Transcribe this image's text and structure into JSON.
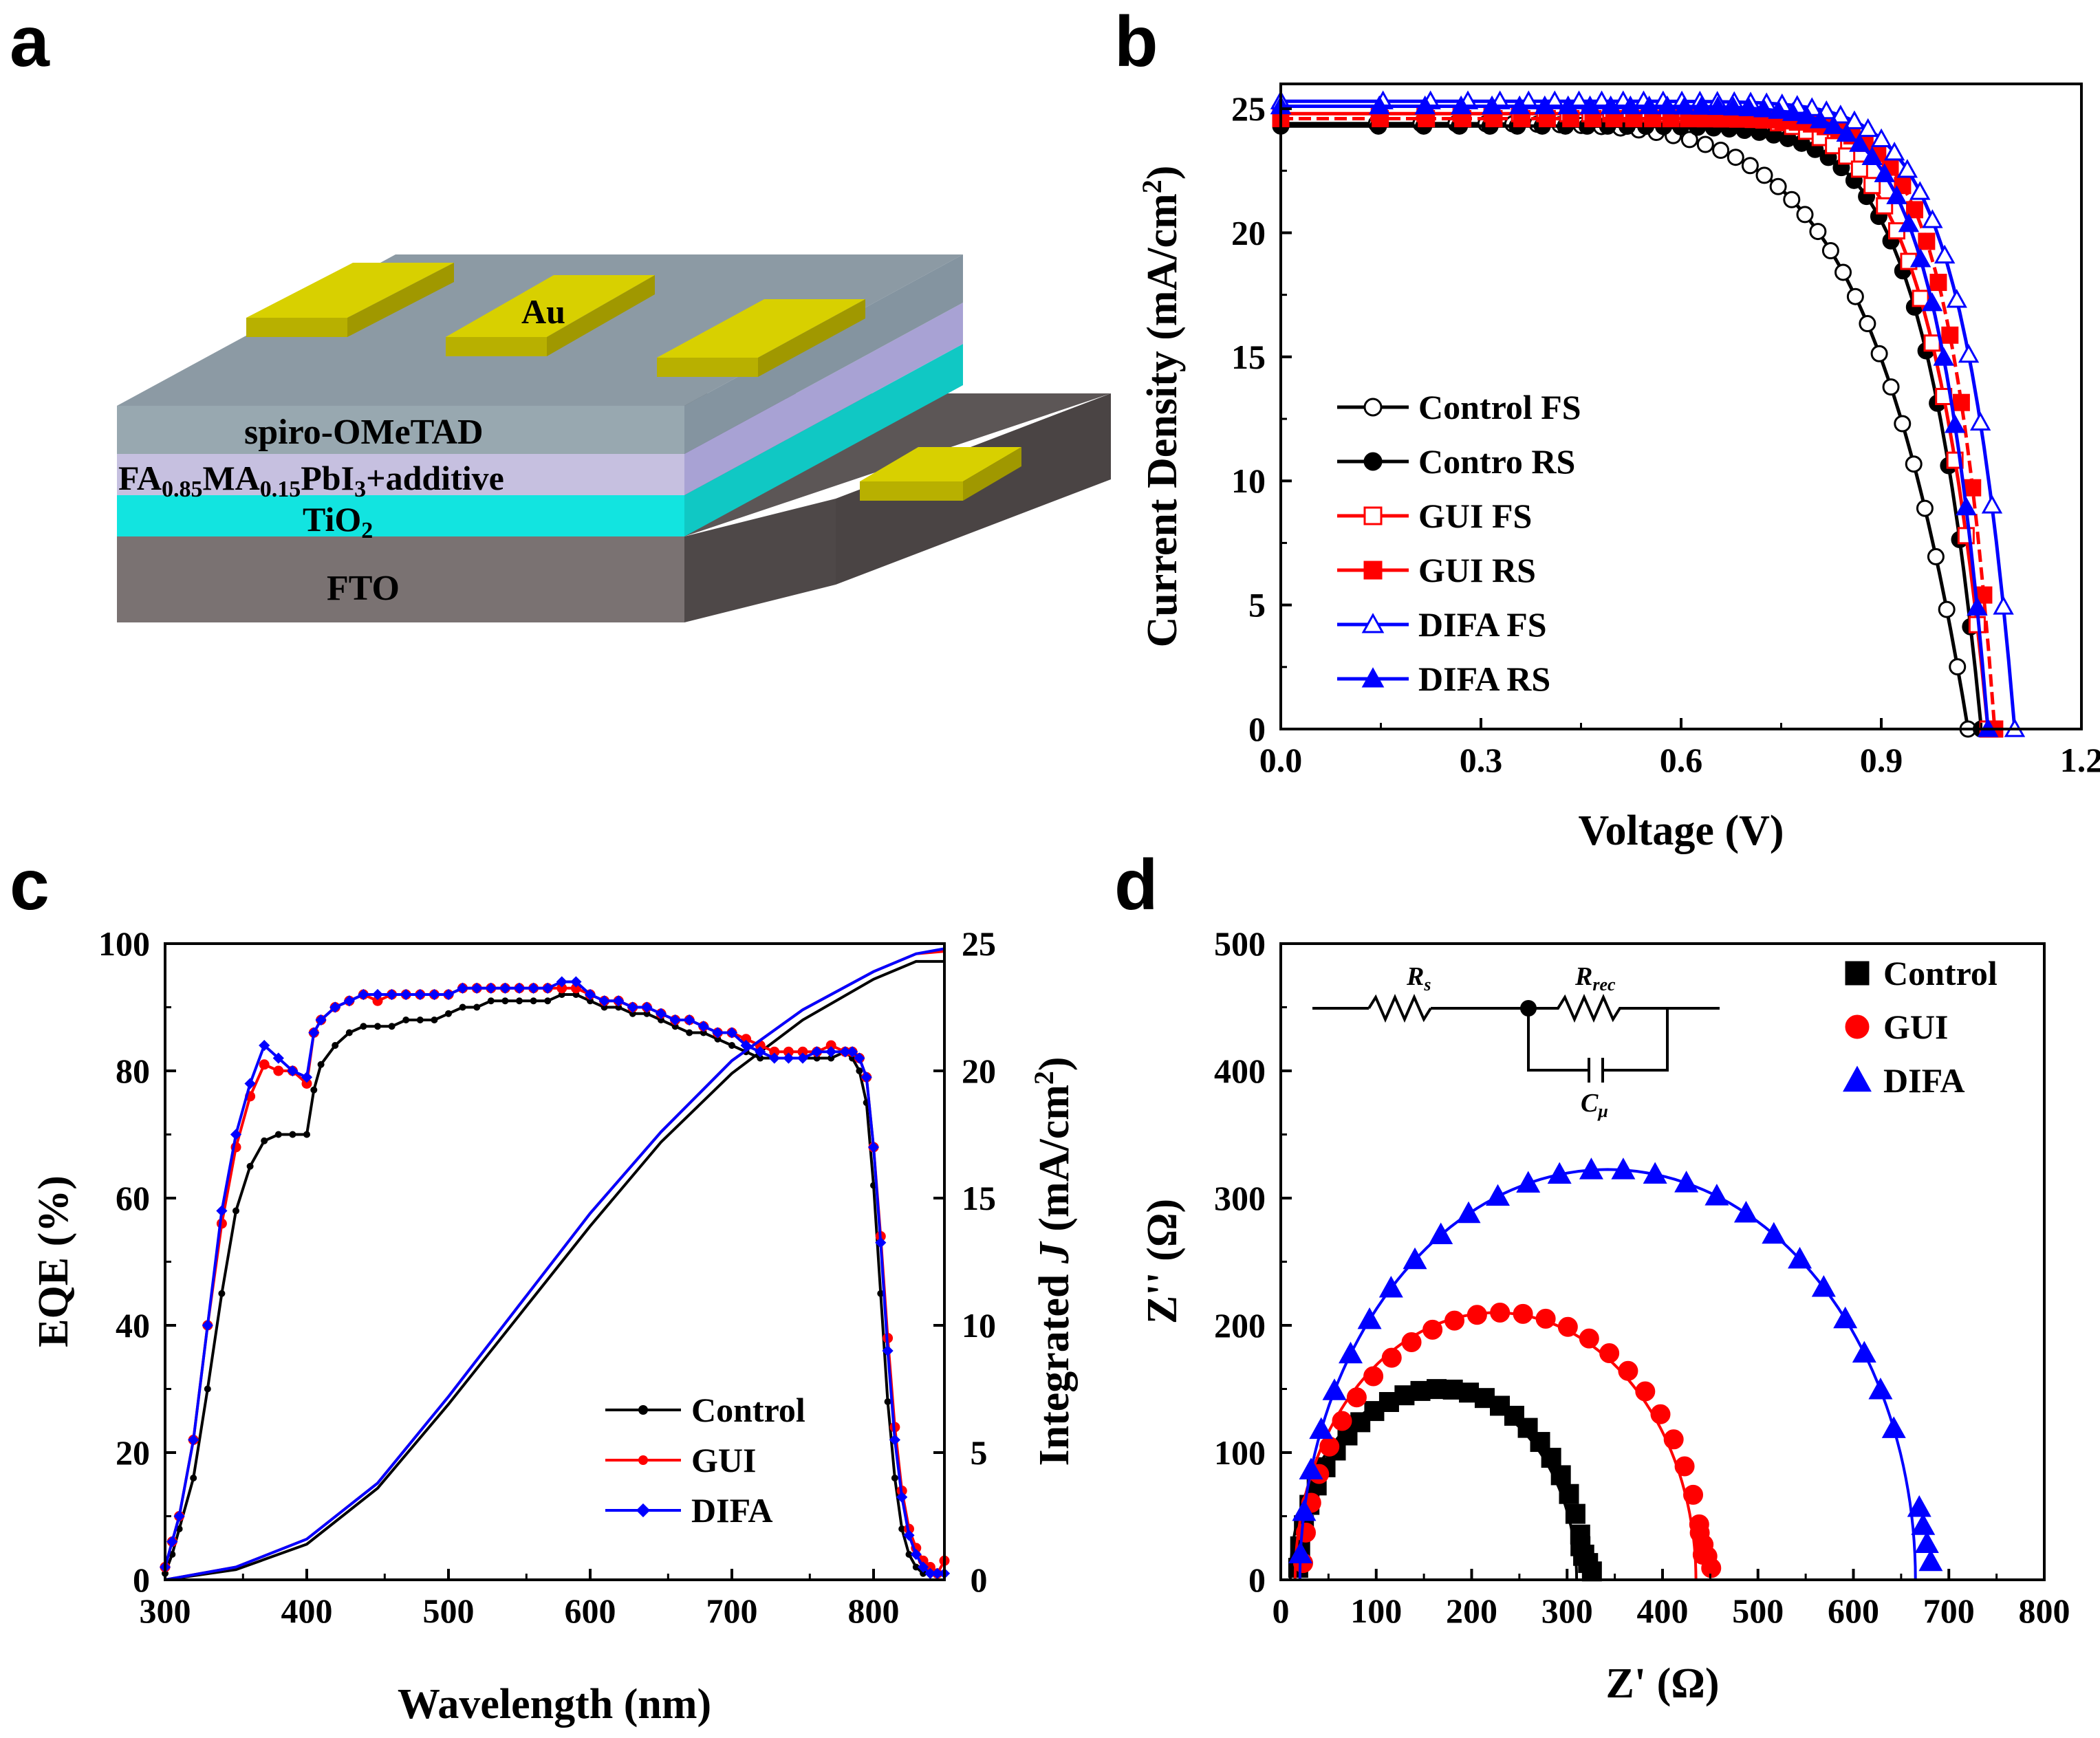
{
  "panels": {
    "a": "a",
    "b": "b",
    "c": "c",
    "d": "d"
  },
  "diagram": {
    "layers": [
      "spiro-OMeTAD",
      "FA",
      "0.85",
      "MA",
      "0.15",
      "PbI",
      "3",
      "+additive",
      "TiO",
      "2",
      "FTO"
    ],
    "electrode": "Au",
    "colors": {
      "au": "#d8d000",
      "spiro": "#98a8b0",
      "perovskite": "#c6c0e0",
      "tio2": "#12e4e0",
      "fto": "#7a7272"
    }
  },
  "chart_data": [
    {
      "id": "b",
      "type": "line",
      "title": "",
      "xlabel": "Voltage (V)",
      "ylabel": "Current Density (mA/cm²)",
      "ylabel_parts": [
        "Current Density (mA/cm",
        "2",
        ")"
      ],
      "xlim": [
        0,
        1.2
      ],
      "ylim": [
        0,
        26
      ],
      "xticks": [
        "0.0",
        "0.3",
        "0.6",
        "0.9",
        "1.2"
      ],
      "yticks": [
        "0",
        "5",
        "10",
        "15",
        "20",
        "25"
      ],
      "series": [
        {
          "name": "Control FS",
          "color": "#000000",
          "marker": "circle-open",
          "jsc": 24.4,
          "voc": 1.03,
          "sharp": 7
        },
        {
          "name": "Contro RS",
          "color": "#000000",
          "marker": "circle-filled",
          "jsc": 24.3,
          "voc": 1.05,
          "sharp": 12
        },
        {
          "name": "GUI FS",
          "color": "#ff0000",
          "marker": "square-open",
          "jsc": 24.8,
          "voc": 1.06,
          "sharp": 12
        },
        {
          "name": "GUI RS",
          "color": "#ff0000",
          "marker": "square-filled",
          "jsc": 24.6,
          "voc": 1.07,
          "sharp": 16
        },
        {
          "name": "DIFA FS",
          "color": "#0000ff",
          "marker": "triangle-open",
          "jsc": 25.3,
          "voc": 1.1,
          "sharp": 14
        },
        {
          "name": "DIFA RS",
          "color": "#0000ff",
          "marker": "triangle-filled",
          "jsc": 25.1,
          "voc": 1.06,
          "sharp": 14
        }
      ]
    },
    {
      "id": "c",
      "type": "line",
      "title": "",
      "xlabel": "Wavelength (nm)",
      "ylabel": "EQE (%)",
      "y2label": "Integrated J (mA/cm²)",
      "y2label_parts": [
        "Integrated ",
        "J",
        " (mA/cm",
        "2",
        ")"
      ],
      "xlim": [
        300,
        850
      ],
      "ylim": [
        0,
        100
      ],
      "y2lim": [
        0,
        25
      ],
      "xticks": [
        "300",
        "400",
        "500",
        "600",
        "700",
        "800"
      ],
      "yticks": [
        "0",
        "20",
        "40",
        "60",
        "80",
        "100"
      ],
      "y2ticks": [
        "0",
        "5",
        "10",
        "15",
        "20",
        "25"
      ],
      "eqe_x": [
        300,
        305,
        310,
        320,
        330,
        340,
        350,
        360,
        370,
        380,
        390,
        400,
        405,
        410,
        420,
        430,
        440,
        450,
        460,
        470,
        480,
        490,
        500,
        510,
        520,
        530,
        540,
        550,
        560,
        570,
        580,
        590,
        600,
        610,
        620,
        630,
        640,
        650,
        660,
        670,
        680,
        690,
        700,
        710,
        720,
        730,
        740,
        750,
        760,
        770,
        780,
        785,
        790,
        795,
        800,
        805,
        810,
        815,
        820,
        825,
        830,
        835,
        840,
        845,
        850
      ],
      "j_x": [
        300,
        350,
        400,
        450,
        500,
        550,
        600,
        650,
        700,
        750,
        800,
        830,
        850
      ],
      "series": [
        {
          "name": "Control",
          "color": "#000000",
          "eqe": [
            1,
            4,
            8,
            16,
            30,
            45,
            58,
            65,
            69,
            70,
            70,
            70,
            77,
            81,
            84,
            86,
            87,
            87,
            87,
            88,
            88,
            88,
            89,
            90,
            90,
            91,
            91,
            91,
            91,
            91,
            92,
            92,
            91,
            90,
            90,
            89,
            89,
            88,
            87,
            86,
            86,
            85,
            84,
            83,
            82,
            82,
            82,
            82,
            82,
            82,
            83,
            82,
            80,
            75,
            62,
            45,
            28,
            16,
            8,
            4,
            2,
            1,
            1,
            1,
            1
          ],
          "j": [
            0,
            0.4,
            1.4,
            3.6,
            6.9,
            10.4,
            13.9,
            17.2,
            19.9,
            22.0,
            23.6,
            24.3,
            24.3
          ]
        },
        {
          "name": "GUI",
          "color": "#ff0000",
          "eqe": [
            2,
            6,
            10,
            22,
            40,
            56,
            68,
            76,
            81,
            80,
            80,
            78,
            86,
            88,
            90,
            91,
            92,
            91,
            92,
            92,
            92,
            92,
            92,
            93,
            93,
            93,
            93,
            93,
            93,
            93,
            93,
            93,
            92,
            91,
            91,
            90,
            90,
            89,
            88,
            88,
            87,
            86,
            86,
            85,
            84,
            83,
            83,
            83,
            83,
            84,
            83,
            83,
            82,
            79,
            68,
            54,
            38,
            24,
            14,
            8,
            5,
            3,
            2,
            1,
            3
          ],
          "j": [
            0,
            0.5,
            1.6,
            3.8,
            7.2,
            10.8,
            14.4,
            17.6,
            20.4,
            22.4,
            23.9,
            24.6,
            24.7
          ]
        },
        {
          "name": "DIFA",
          "color": "#0000ff",
          "eqe": [
            2,
            6,
            10,
            22,
            40,
            58,
            70,
            78,
            84,
            82,
            80,
            79,
            86,
            88,
            90,
            91,
            92,
            92,
            92,
            92,
            92,
            92,
            92,
            93,
            93,
            93,
            93,
            93,
            93,
            93,
            94,
            94,
            92,
            91,
            91,
            90,
            90,
            89,
            88,
            88,
            87,
            86,
            86,
            84,
            83,
            82,
            82,
            82,
            83,
            83,
            83,
            83,
            82,
            79,
            68,
            53,
            36,
            22,
            13,
            7,
            4,
            2,
            1,
            1,
            1
          ],
          "j": [
            0,
            0.5,
            1.6,
            3.8,
            7.2,
            10.8,
            14.4,
            17.6,
            20.4,
            22.4,
            23.9,
            24.6,
            24.8
          ]
        }
      ]
    },
    {
      "id": "d",
      "type": "scatter",
      "title": "",
      "xlabel": "Z' (Ω)",
      "ylabel": "Z'' (Ω)",
      "xlim": [
        0,
        800
      ],
      "ylim": [
        0,
        500
      ],
      "xticks": [
        "0",
        "100",
        "200",
        "300",
        "400",
        "500",
        "600",
        "700",
        "800"
      ],
      "yticks": [
        "0",
        "100",
        "200",
        "300",
        "400",
        "500"
      ],
      "circuit": {
        "rs": "R",
        "rs_sub": "s",
        "rrec": "R",
        "rrec_sub": "rec",
        "cmu": "C",
        "cmu_sub": "μ"
      },
      "series": [
        {
          "name": "Control",
          "color": "#000000",
          "marker": "square",
          "rs": 10,
          "rrec": 300,
          "phi_end": 0.96
        },
        {
          "name": "GUI",
          "color": "#ff0000",
          "marker": "circle",
          "rs": 15,
          "rrec": 420,
          "phi_end": 0.97
        },
        {
          "name": "DIFA",
          "color": "#0000ff",
          "marker": "triangle",
          "rs": 20,
          "rrec": 645,
          "phi_end": 0.88
        }
      ]
    }
  ]
}
